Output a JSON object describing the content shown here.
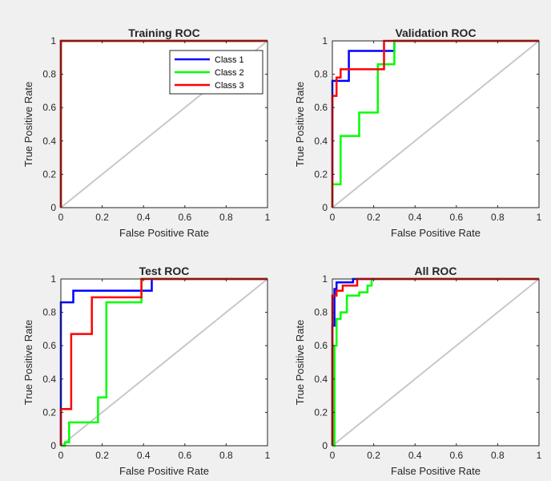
{
  "colors": {
    "class1": "#0000ff",
    "class2": "#00ff00",
    "class3": "#ff0000",
    "diagonal": "#c8c8c8",
    "background": "#f0f0f0",
    "axes_bg": "#ffffff"
  },
  "chart_data": [
    {
      "type": "line",
      "title": "Training ROC",
      "xlabel": "False Positive Rate",
      "ylabel": "True Positive Rate",
      "xlim": [
        0,
        1
      ],
      "ylim": [
        0,
        1
      ],
      "xticks": [
        "0",
        "0.2",
        "0.4",
        "0.6",
        "0.8",
        "1"
      ],
      "yticks": [
        "0",
        "0.2",
        "0.4",
        "0.6",
        "0.8",
        "1"
      ],
      "grid": false,
      "legend": {
        "placement": "top-right",
        "entries": [
          "Class 1",
          "Class 2",
          "Class 3"
        ]
      },
      "series": [
        {
          "name": "Class 1",
          "color": "class1",
          "x": [
            0,
            0,
            1
          ],
          "y": [
            0,
            1,
            1
          ]
        },
        {
          "name": "Class 2",
          "color": "class2",
          "x": [
            0,
            0,
            1
          ],
          "y": [
            0,
            1,
            1
          ]
        },
        {
          "name": "Class 3",
          "color": "class3",
          "x": [
            0,
            0,
            1
          ],
          "y": [
            0,
            1,
            1
          ]
        }
      ]
    },
    {
      "type": "line",
      "title": "Validation ROC",
      "xlabel": "False Positive Rate",
      "ylabel": "True Positive Rate",
      "xlim": [
        0,
        1
      ],
      "ylim": [
        0,
        1
      ],
      "xticks": [
        "0",
        "0.2",
        "0.4",
        "0.6",
        "0.8",
        "1"
      ],
      "yticks": [
        "0",
        "0.2",
        "0.4",
        "0.6",
        "0.8",
        "1"
      ],
      "grid": false,
      "series": [
        {
          "name": "Class 1",
          "color": "class1",
          "x": [
            0,
            0,
            0.08,
            0.08,
            0.3,
            0.3,
            1
          ],
          "y": [
            0,
            0.76,
            0.76,
            0.94,
            0.94,
            1,
            1
          ]
        },
        {
          "name": "Class 2",
          "color": "class2",
          "x": [
            0,
            0,
            0.04,
            0.04,
            0.13,
            0.13,
            0.22,
            0.22,
            0.3,
            0.3,
            1
          ],
          "y": [
            0,
            0.14,
            0.14,
            0.43,
            0.43,
            0.57,
            0.57,
            0.86,
            0.86,
            1,
            1
          ]
        },
        {
          "name": "Class 3",
          "color": "class3",
          "x": [
            0,
            0,
            0.02,
            0.02,
            0.04,
            0.04,
            0.25,
            0.25,
            1
          ],
          "y": [
            0,
            0.67,
            0.67,
            0.78,
            0.78,
            0.83,
            0.83,
            1,
            1
          ]
        }
      ]
    },
    {
      "type": "line",
      "title": "Test ROC",
      "xlabel": "False Positive Rate",
      "ylabel": "True Positive Rate",
      "xlim": [
        0,
        1
      ],
      "ylim": [
        0,
        1
      ],
      "xticks": [
        "0",
        "0.2",
        "0.4",
        "0.6",
        "0.8",
        "1"
      ],
      "yticks": [
        "0",
        "0.2",
        "0.4",
        "0.6",
        "0.8",
        "1"
      ],
      "grid": false,
      "series": [
        {
          "name": "Class 1",
          "color": "class1",
          "x": [
            0,
            0,
            0.06,
            0.06,
            0.44,
            0.44,
            1
          ],
          "y": [
            0,
            0.86,
            0.86,
            0.93,
            0.93,
            1,
            1
          ]
        },
        {
          "name": "Class 2",
          "color": "class2",
          "x": [
            0,
            0.02,
            0.02,
            0.04,
            0.04,
            0.18,
            0.18,
            0.22,
            0.22,
            0.39,
            0.39,
            1
          ],
          "y": [
            0,
            0,
            0.02,
            0.02,
            0.14,
            0.14,
            0.29,
            0.29,
            0.86,
            0.86,
            1,
            1
          ]
        },
        {
          "name": "Class 3",
          "color": "class3",
          "x": [
            0,
            0,
            0.05,
            0.05,
            0.15,
            0.15,
            0.39,
            0.39,
            1
          ],
          "y": [
            0,
            0.22,
            0.22,
            0.67,
            0.67,
            0.89,
            0.89,
            1,
            1
          ]
        }
      ]
    },
    {
      "type": "line",
      "title": "All ROC",
      "xlabel": "False Positive Rate",
      "ylabel": "True Positive Rate",
      "xlim": [
        0,
        1
      ],
      "ylim": [
        0,
        1
      ],
      "xticks": [
        "0",
        "0.2",
        "0.4",
        "0.6",
        "0.8",
        "1"
      ],
      "yticks": [
        "0",
        "0.2",
        "0.4",
        "0.6",
        "0.8",
        "1"
      ],
      "grid": false,
      "series": [
        {
          "name": "Class 1",
          "color": "class1",
          "x": [
            0,
            0,
            0.01,
            0.01,
            0.02,
            0.02,
            0.1,
            0.1,
            1
          ],
          "y": [
            0,
            0.72,
            0.72,
            0.94,
            0.94,
            0.98,
            0.98,
            1,
            1
          ]
        },
        {
          "name": "Class 2",
          "color": "class2",
          "x": [
            0,
            0.01,
            0.01,
            0.02,
            0.02,
            0.04,
            0.04,
            0.07,
            0.07,
            0.13,
            0.13,
            0.17,
            0.17,
            0.19,
            0.19,
            1
          ],
          "y": [
            0,
            0,
            0.6,
            0.6,
            0.76,
            0.76,
            0.8,
            0.8,
            0.9,
            0.9,
            0.92,
            0.92,
            0.96,
            0.96,
            1,
            1
          ]
        },
        {
          "name": "Class 3",
          "color": "class3",
          "x": [
            0,
            0,
            0.02,
            0.02,
            0.05,
            0.05,
            0.12,
            0.12,
            1
          ],
          "y": [
            0,
            0.9,
            0.9,
            0.93,
            0.93,
            0.96,
            0.96,
            1,
            1
          ]
        }
      ]
    }
  ]
}
